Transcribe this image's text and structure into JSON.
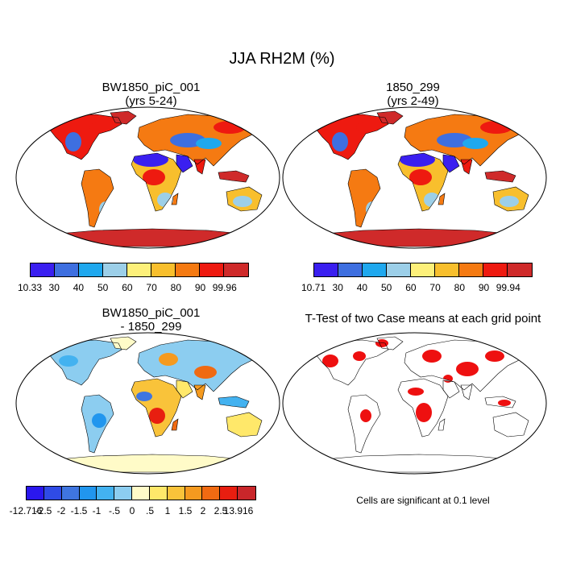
{
  "title": "JJA RH2M (%)",
  "panels": [
    {
      "title_line1": "BW1850_piC_001",
      "title_line2": "(yrs 5-24)"
    },
    {
      "title_line1": "1850_299",
      "title_line2": "(yrs 2-49)"
    },
    {
      "title_line1": "BW1850_piC_001",
      "title_line2": "- 1850_299"
    },
    {
      "title_line1": "T-Test of two Case means at each grid point",
      "title_line2": ""
    }
  ],
  "colorbars": {
    "panel1": {
      "labels": [
        "10.33",
        "30",
        "40",
        "50",
        "60",
        "70",
        "80",
        "90",
        "99.96"
      ],
      "colors": [
        "#3a1ff0",
        "#3e6fe0",
        "#1fa8ee",
        "#9ccfe8",
        "#fdf07a",
        "#f8bf2d",
        "#f57a12",
        "#ee1a10",
        "#cf2a2a"
      ]
    },
    "panel2": {
      "labels": [
        "10.71",
        "30",
        "40",
        "50",
        "60",
        "70",
        "80",
        "90",
        "99.94"
      ],
      "colors": [
        "#3a1ff0",
        "#3e6fe0",
        "#1fa8ee",
        "#9ccfe8",
        "#fdf07a",
        "#f8bf2d",
        "#f57a12",
        "#ee1a10",
        "#cf2a2a"
      ]
    },
    "panel3": {
      "labels": [
        "-12.716",
        "-2.5",
        "-2",
        "-1.5",
        "-1",
        "-.5",
        "0",
        ".5",
        "1",
        "1.5",
        "2",
        "2.5",
        "13.916"
      ],
      "colors": [
        "#2a17ee",
        "#2f4be6",
        "#3f75e0",
        "#2196ee",
        "#43b2f0",
        "#8ccdf0",
        "#fffbc8",
        "#ffe86a",
        "#f9c33a",
        "#f59a1f",
        "#f06a12",
        "#e81e10",
        "#c9262a"
      ]
    }
  },
  "significance_note": "Cells are significant at 0.1 level",
  "map_colors": {
    "ocean": "#ffffff",
    "outline": "#000000",
    "significant": "#ee1010"
  }
}
